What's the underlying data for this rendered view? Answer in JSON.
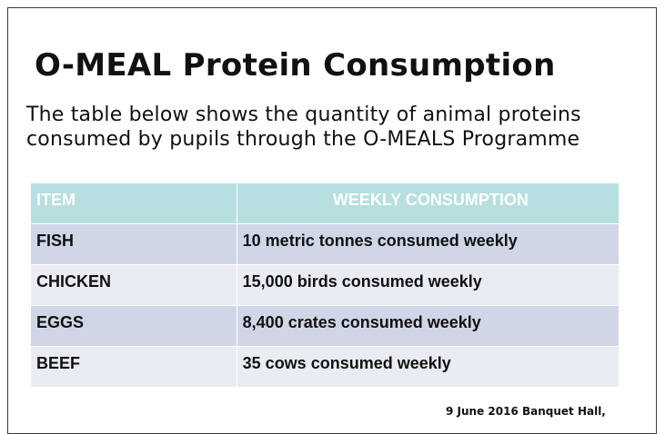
{
  "slide": {
    "title": "O-MEAL Protein Consumption",
    "intro": "The table below shows the quantity of animal proteins consumed by  pupils through the O-MEALS Programme",
    "table": {
      "headers": [
        "ITEM",
        "WEEKLY CONSUMPTION"
      ],
      "rows": [
        [
          "FISH",
          "10 metric tonnes consumed weekly"
        ],
        [
          "CHICKEN",
          "15,000 birds consumed weekly"
        ],
        [
          "EGGS",
          "8,400 crates consumed weekly"
        ],
        [
          "BEEF",
          "35 cows consumed weekly"
        ]
      ]
    },
    "footer": "9 June 2016 Banquet Hall,",
    "colors": {
      "header_background": "#b7dfe0",
      "row_dark": "#d0d6e6",
      "row_light": "#e9ecf2"
    }
  }
}
